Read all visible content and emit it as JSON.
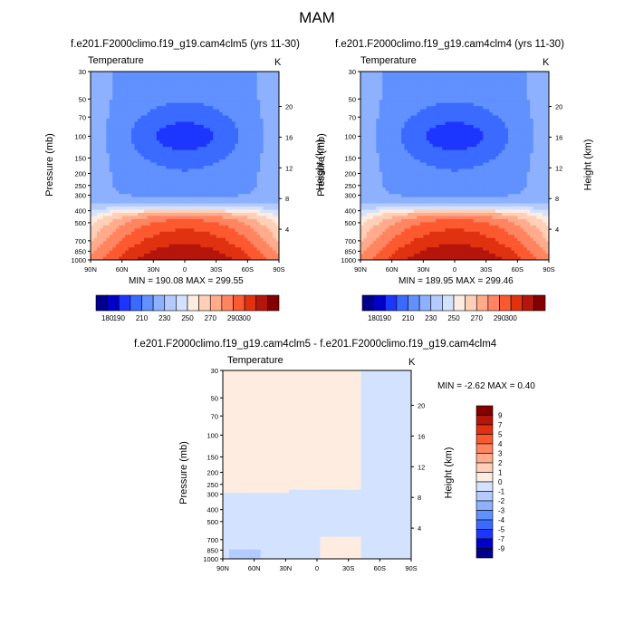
{
  "title": "MAM",
  "colors": {
    "temperature_scale": [
      "#00008d",
      "#0000c8",
      "#1d36ff",
      "#3a6aff",
      "#6190ff",
      "#8eb1ff",
      "#b3cbff",
      "#d3e3ff",
      "#ffece1",
      "#ffcfb7",
      "#ffab8c",
      "#ff8460",
      "#fc5931",
      "#e03210",
      "#b5150b",
      "#840000"
    ],
    "diff_scale": [
      "#00008d",
      "#0000c8",
      "#1d36ff",
      "#3a6aff",
      "#6190ff",
      "#8eb1ff",
      "#b3cbff",
      "#d3e3ff",
      "#ffece1",
      "#ffcfb7",
      "#ffab8c",
      "#ff8460",
      "#fc5931",
      "#e03210",
      "#b5150b",
      "#840000"
    ]
  },
  "panels": [
    {
      "subtitle": "f.e201.F2000climo.f19_g19.cam4clm5 (yrs 11-30)",
      "variable": "Temperature",
      "units": "K",
      "minmax": "MIN = 190.08   MAX = 299.55"
    },
    {
      "subtitle": "f.e201.F2000climo.f19_g19.cam4clm4 (yrs 11-30)",
      "variable": "Temperature",
      "units": "K",
      "minmax": "MIN = 189.95   MAX = 299.46"
    },
    {
      "subtitle": "f.e201.F2000climo.f19_g19.cam4clm5 - f.e201.F2000climo.f19_g19.cam4clm4",
      "variable": "Temperature",
      "units": "K",
      "minmax": "MIN =  -2.62   MAX =   0.40"
    }
  ],
  "axes": {
    "ylabel": "Pressure (mb)",
    "y2label": "Height (km)",
    "pressure_ticks": [
      "30",
      "50",
      "70",
      "100",
      "150",
      "200",
      "250",
      "300",
      "400",
      "500",
      "700",
      "850",
      "1000"
    ],
    "height_ticks": [
      "4",
      "8",
      "12",
      "16",
      "20"
    ],
    "lat_ticks": [
      "90N",
      "60N",
      "30N",
      "0",
      "30S",
      "60S",
      "90S"
    ]
  },
  "colorbar_top_labels": [
    "180",
    "190",
    "210",
    "230",
    "250",
    "270",
    "290",
    "300"
  ],
  "colorbar_diff_labels": [
    "9",
    "7",
    "5",
    "4",
    "3",
    "2",
    "1",
    "0",
    "-1",
    "-2",
    "-3",
    "-4",
    "-5",
    "-7",
    "-9"
  ],
  "chart_data": [
    {
      "type": "heatmap",
      "title": "f.e201.F2000climo.f19_g19.cam4clm5 (yrs 11-30)",
      "variable": "Temperature",
      "units": "K",
      "xlabel": "",
      "ylabel": "Pressure (mb)",
      "y2label": "Height (km)",
      "x": [
        "90N",
        "60N",
        "30N",
        "0",
        "30S",
        "60S",
        "90S"
      ],
      "y_pressure_mb": [
        30,
        50,
        70,
        100,
        150,
        200,
        250,
        300,
        400,
        500,
        700,
        850,
        1000
      ],
      "y_log": true,
      "ylim": [
        1000,
        30
      ],
      "min": 190.08,
      "max": 299.55,
      "colorbar_levels": [
        180,
        190,
        200,
        210,
        220,
        230,
        240,
        250,
        260,
        270,
        280,
        290,
        300
      ]
    },
    {
      "type": "heatmap",
      "title": "f.e201.F2000climo.f19_g19.cam4clm4 (yrs 11-30)",
      "variable": "Temperature",
      "units": "K",
      "xlabel": "",
      "ylabel": "Pressure (mb)",
      "y2label": "Height (km)",
      "x": [
        "90N",
        "60N",
        "30N",
        "0",
        "30S",
        "60S",
        "90S"
      ],
      "y_pressure_mb": [
        30,
        50,
        70,
        100,
        150,
        200,
        250,
        300,
        400,
        500,
        700,
        850,
        1000
      ],
      "y_log": true,
      "ylim": [
        1000,
        30
      ],
      "min": 189.95,
      "max": 299.46,
      "colorbar_levels": [
        180,
        190,
        200,
        210,
        220,
        230,
        240,
        250,
        260,
        270,
        280,
        290,
        300
      ]
    },
    {
      "type": "heatmap",
      "title": "f.e201.F2000climo.f19_g19.cam4clm5 - f.e201.F2000climo.f19_g19.cam4clm4",
      "variable": "Temperature",
      "units": "K",
      "xlabel": "",
      "ylabel": "Pressure (mb)",
      "y2label": "Height (km)",
      "x": [
        "90N",
        "60N",
        "30N",
        "0",
        "30S",
        "60S",
        "90S"
      ],
      "y_pressure_mb": [
        30,
        50,
        70,
        100,
        150,
        200,
        250,
        300,
        400,
        500,
        700,
        850,
        1000
      ],
      "y_log": true,
      "ylim": [
        1000,
        30
      ],
      "min": -2.62,
      "max": 0.4,
      "colorbar_levels": [
        -9,
        -7,
        -5,
        -4,
        -3,
        -2,
        -1,
        0,
        1,
        2,
        3,
        4,
        5,
        7,
        9
      ]
    }
  ]
}
